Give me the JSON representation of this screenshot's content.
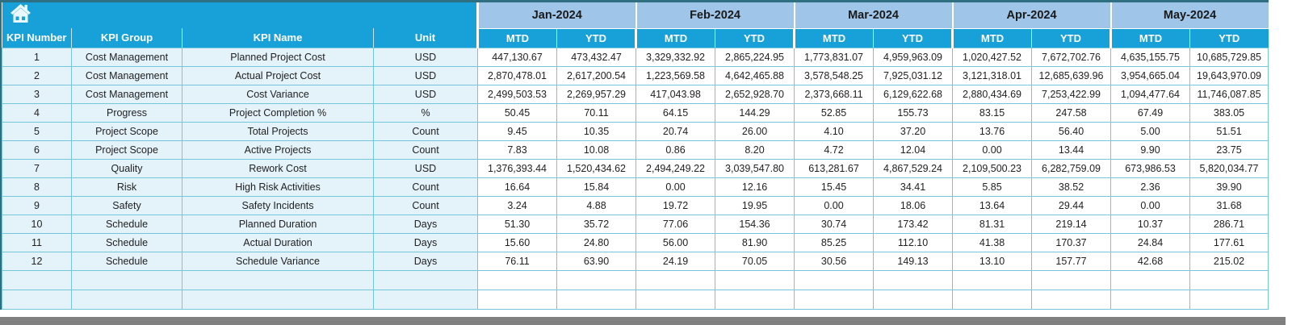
{
  "home": {
    "tooltip": "Home"
  },
  "colors": {
    "header_cyan": "#18a0d8",
    "month_band_blue": "#9fc5e8",
    "left_cell_blue": "#e4f2fa",
    "cell_border_teal": "#74c7db",
    "outer_border": "#2e6f82",
    "bottom_bar_grey": "#808080"
  },
  "table": {
    "left_headers": [
      "KPI Number",
      "KPI Group",
      "KPI Name",
      "Unit"
    ],
    "months": [
      "Jan-2024",
      "Feb-2024",
      "Mar-2024",
      "Apr-2024",
      "May-2024"
    ],
    "sub_headers": [
      "MTD",
      "YTD"
    ],
    "empty_row_count": 2,
    "rows": [
      {
        "number": "1",
        "group": "Cost Management",
        "name": "Planned Project Cost",
        "unit": "USD",
        "values": [
          "447,130.67",
          "473,432.47",
          "3,329,332.92",
          "2,865,224.95",
          "1,773,831.07",
          "4,959,963.09",
          "1,020,427.52",
          "7,672,702.76",
          "4,635,155.75",
          "10,685,729.85"
        ]
      },
      {
        "number": "2",
        "group": "Cost Management",
        "name": "Actual Project Cost",
        "unit": "USD",
        "values": [
          "2,870,478.01",
          "2,617,200.54",
          "1,223,569.58",
          "4,642,465.88",
          "3,578,548.25",
          "7,925,031.12",
          "3,121,318.01",
          "12,685,639.96",
          "3,954,665.04",
          "19,643,970.09"
        ]
      },
      {
        "number": "3",
        "group": "Cost Management",
        "name": "Cost Variance",
        "unit": "USD",
        "values": [
          "2,499,503.53",
          "2,269,957.29",
          "417,043.98",
          "2,652,928.70",
          "2,373,668.11",
          "6,129,622.68",
          "2,880,434.69",
          "7,253,422.99",
          "1,094,477.64",
          "11,746,087.85"
        ]
      },
      {
        "number": "4",
        "group": "Progress",
        "name": "Project Completion %",
        "unit": "%",
        "values": [
          "50.45",
          "70.11",
          "64.15",
          "144.29",
          "52.85",
          "155.73",
          "83.15",
          "247.58",
          "67.49",
          "383.05"
        ]
      },
      {
        "number": "5",
        "group": "Project Scope",
        "name": "Total Projects",
        "unit": "Count",
        "values": [
          "9.45",
          "10.35",
          "20.74",
          "26.00",
          "4.10",
          "37.20",
          "13.76",
          "56.40",
          "5.00",
          "51.51"
        ]
      },
      {
        "number": "6",
        "group": "Project Scope",
        "name": "Active Projects",
        "unit": "Count",
        "values": [
          "7.83",
          "10.08",
          "0.86",
          "8.20",
          "4.72",
          "12.04",
          "0.00",
          "13.44",
          "9.90",
          "23.75"
        ]
      },
      {
        "number": "7",
        "group": "Quality",
        "name": "Rework Cost",
        "unit": "USD",
        "values": [
          "1,376,393.44",
          "1,520,434.62",
          "2,494,249.22",
          "3,039,547.80",
          "613,281.67",
          "4,867,529.24",
          "2,109,500.23",
          "6,282,759.09",
          "673,986.53",
          "5,820,034.77"
        ]
      },
      {
        "number": "8",
        "group": "Risk",
        "name": "High Risk Activities",
        "unit": "Count",
        "values": [
          "16.64",
          "15.84",
          "0.00",
          "12.16",
          "15.45",
          "34.41",
          "5.85",
          "38.52",
          "2.36",
          "39.90"
        ]
      },
      {
        "number": "9",
        "group": "Safety",
        "name": "Safety Incidents",
        "unit": "Count",
        "values": [
          "3.24",
          "4.88",
          "19.72",
          "19.95",
          "0.00",
          "18.06",
          "13.64",
          "29.44",
          "0.00",
          "31.68"
        ]
      },
      {
        "number": "10",
        "group": "Schedule",
        "name": "Planned Duration",
        "unit": "Days",
        "values": [
          "51.30",
          "35.72",
          "77.06",
          "154.36",
          "30.74",
          "173.42",
          "81.31",
          "219.14",
          "10.37",
          "286.71"
        ]
      },
      {
        "number": "11",
        "group": "Schedule",
        "name": "Actual Duration",
        "unit": "Days",
        "values": [
          "15.60",
          "24.80",
          "56.00",
          "81.90",
          "85.25",
          "112.10",
          "41.38",
          "170.37",
          "24.84",
          "177.61"
        ]
      },
      {
        "number": "12",
        "group": "Schedule",
        "name": "Schedule Variance",
        "unit": "Days",
        "values": [
          "76.11",
          "63.90",
          "24.19",
          "70.05",
          "30.56",
          "149.13",
          "13.10",
          "157.77",
          "42.68",
          "215.02"
        ]
      }
    ]
  }
}
